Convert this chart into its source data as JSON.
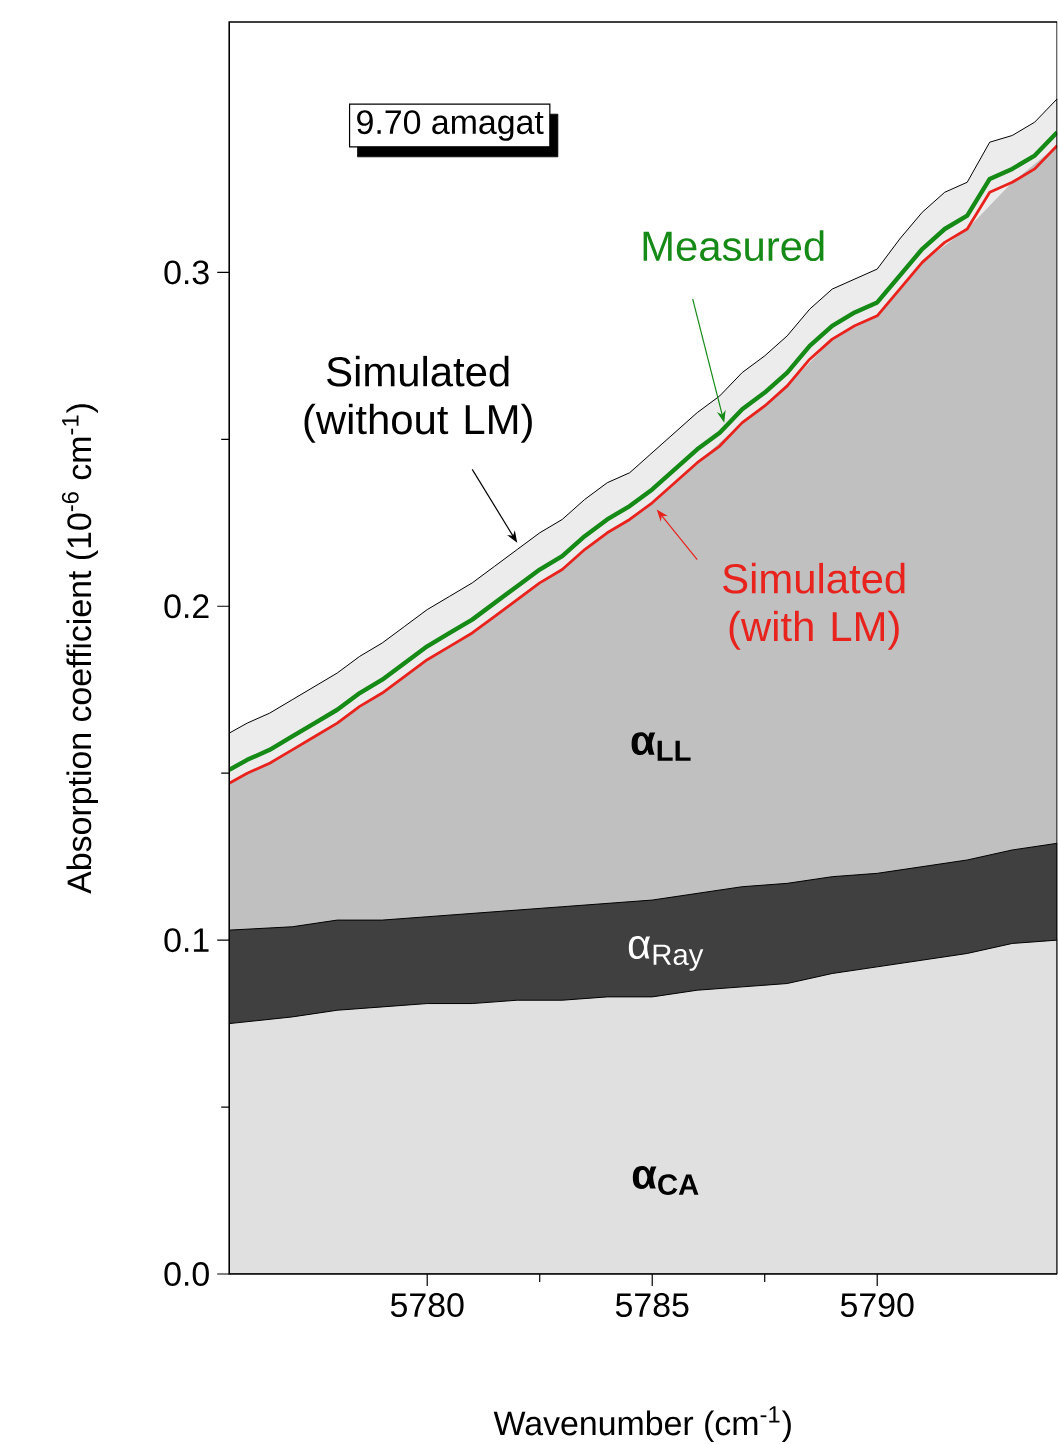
{
  "chart_data": {
    "type": "area",
    "xlabel": "Wavenumber (cm$^{-1}$)",
    "ylabel": "Absorption coefficient (10$^{-6}$ cm$^{-1}$)",
    "xlim": [
      5775.6,
      5794
    ],
    "ylim": [
      0,
      0.375
    ],
    "xticks": [
      5780,
      5785,
      5790
    ],
    "yticks": [
      {
        "value": 0,
        "label": "0.0"
      },
      0.1,
      0.2,
      0.3
    ],
    "annotations": [
      "9.70 amagat"
    ],
    "series": [
      {
        "name": "Simulated (without LM)",
        "type": "area",
        "color": "#ececec",
        "x": [
          5775.6,
          5776,
          5776.5,
          5777,
          5777.5,
          5778,
          5778.5,
          5779,
          5779.5,
          5780,
          5780.5,
          5781,
          5781.5,
          5782,
          5782.5,
          5783,
          5783.5,
          5784,
          5784.5,
          5785,
          5785.5,
          5786,
          5786.5,
          5787,
          5787.5,
          5788,
          5788.5,
          5789,
          5789.5,
          5790,
          5790.5,
          5791,
          5791.5,
          5792,
          5792.5,
          5793,
          5793.5,
          5794
        ],
        "values": [
          0.162,
          0.165,
          0.168,
          0.172,
          0.176,
          0.18,
          0.185,
          0.189,
          0.194,
          0.199,
          0.203,
          0.207,
          0.212,
          0.217,
          0.222,
          0.226,
          0.232,
          0.237,
          0.24,
          0.246,
          0.252,
          0.258,
          0.263,
          0.27,
          0.275,
          0.281,
          0.289,
          0.295,
          0.298,
          0.301,
          0.31,
          0.318,
          0.324,
          0.327,
          0.339,
          0.341,
          0.345,
          0.352
        ]
      },
      {
        "name": "α$_{LL}$",
        "type": "area",
        "color": "#c0c0c0",
        "x": [
          5775.6,
          5777,
          5778,
          5779,
          5780,
          5781,
          5782,
          5783,
          5784,
          5785,
          5786,
          5787,
          5788,
          5789,
          5790,
          5791,
          5792,
          5793,
          5794
        ],
        "values": [
          0.147,
          0.157,
          0.165,
          0.174,
          0.184,
          0.192,
          0.202,
          0.211,
          0.222,
          0.231,
          0.243,
          0.255,
          0.266,
          0.28,
          0.287,
          0.303,
          0.313,
          0.327,
          0.338
        ]
      },
      {
        "name": "Simulated (with LM)",
        "type": "line",
        "color": "#e8221c",
        "x": [
          5775.6,
          5776,
          5776.5,
          5777,
          5777.5,
          5778,
          5778.5,
          5779,
          5779.5,
          5780,
          5780.5,
          5781,
          5781.5,
          5782,
          5782.5,
          5783,
          5783.5,
          5784,
          5784.5,
          5785,
          5785.5,
          5786,
          5786.5,
          5787,
          5787.5,
          5788,
          5788.5,
          5789,
          5789.5,
          5790,
          5790.5,
          5791,
          5791.5,
          5792,
          5792.5,
          5793,
          5793.5,
          5794
        ],
        "values": [
          0.147,
          0.15,
          0.153,
          0.157,
          0.161,
          0.165,
          0.17,
          0.174,
          0.179,
          0.184,
          0.188,
          0.192,
          0.197,
          0.202,
          0.207,
          0.211,
          0.217,
          0.222,
          0.226,
          0.231,
          0.237,
          0.243,
          0.248,
          0.255,
          0.26,
          0.266,
          0.274,
          0.28,
          0.284,
          0.287,
          0.295,
          0.303,
          0.309,
          0.313,
          0.324,
          0.327,
          0.331,
          0.338
        ]
      },
      {
        "name": "Measured",
        "type": "line",
        "color": "#168a16",
        "x": [
          5775.6,
          5776,
          5776.5,
          5777,
          5777.5,
          5778,
          5778.5,
          5779,
          5779.5,
          5780,
          5780.5,
          5781,
          5781.5,
          5782,
          5782.5,
          5783,
          5783.5,
          5784,
          5784.5,
          5785,
          5785.5,
          5786,
          5786.5,
          5787,
          5787.5,
          5788,
          5788.5,
          5789,
          5789.5,
          5790,
          5790.5,
          5791,
          5791.5,
          5792,
          5792.5,
          5793,
          5793.5,
          5794
        ],
        "values": [
          0.151,
          0.154,
          0.157,
          0.161,
          0.165,
          0.169,
          0.174,
          0.178,
          0.183,
          0.188,
          0.192,
          0.196,
          0.201,
          0.206,
          0.211,
          0.215,
          0.221,
          0.226,
          0.23,
          0.235,
          0.241,
          0.247,
          0.252,
          0.259,
          0.264,
          0.27,
          0.278,
          0.284,
          0.288,
          0.291,
          0.299,
          0.307,
          0.313,
          0.317,
          0.328,
          0.331,
          0.335,
          0.342
        ]
      },
      {
        "name": "α$_{Ray}$",
        "type": "area",
        "color": "#404040",
        "x": [
          5775.6,
          5777,
          5778,
          5779,
          5780,
          5781,
          5782,
          5783,
          5784,
          5785,
          5786,
          5787,
          5788,
          5789,
          5790,
          5791,
          5792,
          5793,
          5794
        ],
        "values": [
          0.103,
          0.104,
          0.106,
          0.106,
          0.107,
          0.108,
          0.109,
          0.11,
          0.111,
          0.112,
          0.114,
          0.116,
          0.117,
          0.119,
          0.12,
          0.122,
          0.124,
          0.127,
          0.129
        ]
      },
      {
        "name": "α$_{CA}$",
        "color": "#e0e0e0",
        "x": [
          5775.6,
          5777,
          5778,
          5779,
          5780,
          5781,
          5782,
          5783,
          5784,
          5785,
          5786,
          5787,
          5788,
          5789,
          5790,
          5791,
          5792,
          5793,
          5794
        ],
        "values": [
          0.075,
          0.077,
          0.079,
          0.08,
          0.081,
          0.081,
          0.082,
          0.082,
          0.083,
          0.083,
          0.085,
          0.086,
          0.087,
          0.09,
          0.092,
          0.094,
          0.096,
          0.099,
          0.1
        ]
      }
    ]
  }
}
